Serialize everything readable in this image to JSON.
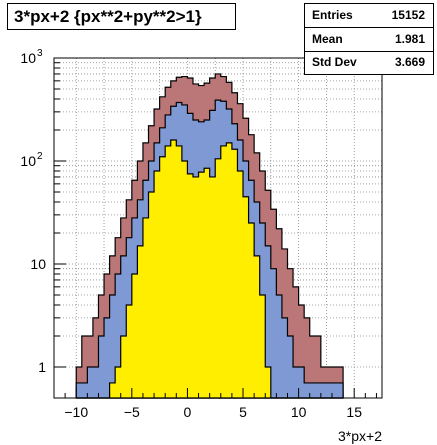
{
  "title": "3*px+2 {px**2+py**2>1}",
  "stats": {
    "rows": [
      {
        "label": "Entries",
        "value": "15152"
      },
      {
        "label": "Mean",
        "value": "1.981"
      },
      {
        "label": "Std Dev",
        "value": "3.669"
      }
    ]
  },
  "colors": {
    "outer": "#bb7777",
    "middle": "#7f99d4",
    "inner": "#ffee00",
    "line": "#000000"
  },
  "chart_data": {
    "type": "bar",
    "title": "3*px+2 {px**2+py**2>1}",
    "xlabel": "3*px+2",
    "ylabel": "",
    "xlim": [
      -12,
      17.5
    ],
    "ylim": [
      0.5,
      1000
    ],
    "yscale": "log",
    "grid": true,
    "xticks": [
      "−10",
      "−5",
      "0",
      "5",
      "10",
      "15"
    ],
    "xtick_values": [
      -10,
      -5,
      0,
      5,
      10,
      15
    ],
    "yticks": [
      "1",
      "10",
      "10²",
      "10³"
    ],
    "ytick_values": [
      1,
      10,
      100,
      1000
    ],
    "x": [
      -9.75,
      -9.25,
      -8.75,
      -8.25,
      -7.75,
      -7.25,
      -6.75,
      -6.25,
      -5.75,
      -5.25,
      -4.75,
      -4.25,
      -3.75,
      -3.25,
      -2.75,
      -2.25,
      -1.75,
      -1.25,
      -0.75,
      -0.25,
      0.25,
      0.75,
      1.25,
      1.75,
      2.25,
      2.75,
      3.25,
      3.75,
      4.25,
      4.75,
      5.25,
      5.75,
      6.25,
      6.75,
      7.25,
      7.75,
      8.25,
      8.75,
      9.25,
      9.75,
      10.25,
      10.75,
      11.25,
      11.75,
      12.25,
      12.75,
      13.25,
      13.75
    ],
    "series": [
      {
        "values": [
          1,
          2,
          2,
          3,
          5,
          8,
          12,
          18,
          28,
          42,
          65,
          100,
          150,
          220,
          320,
          420,
          520,
          600,
          650,
          660,
          640,
          560,
          540,
          570,
          640,
          700,
          660,
          580,
          460,
          360,
          260,
          180,
          120,
          80,
          52,
          34,
          22,
          14,
          9,
          6,
          4,
          3,
          2,
          2,
          1,
          1,
          1,
          1
        ]
      },
      {
        "values": [
          0.7,
          0.7,
          1,
          1,
          2,
          3,
          5,
          8,
          12,
          18,
          28,
          42,
          65,
          100,
          150,
          210,
          280,
          340,
          370,
          350,
          290,
          250,
          240,
          250,
          310,
          390,
          380,
          320,
          230,
          160,
          100,
          65,
          40,
          25,
          15,
          9,
          5,
          3,
          2,
          1,
          1,
          0.7,
          0.7,
          0.7,
          0.7,
          0.7,
          0.7,
          0.7
        ]
      },
      {
        "values": [
          0,
          0,
          0,
          0,
          0,
          0,
          0.7,
          1,
          2,
          4,
          8,
          15,
          28,
          50,
          80,
          110,
          140,
          160,
          140,
          100,
          75,
          70,
          78,
          85,
          70,
          105,
          140,
          150,
          130,
          80,
          45,
          25,
          12,
          5,
          1,
          0,
          0,
          0,
          0,
          0,
          0,
          0,
          0,
          0,
          0,
          0,
          0,
          0
        ]
      }
    ]
  }
}
